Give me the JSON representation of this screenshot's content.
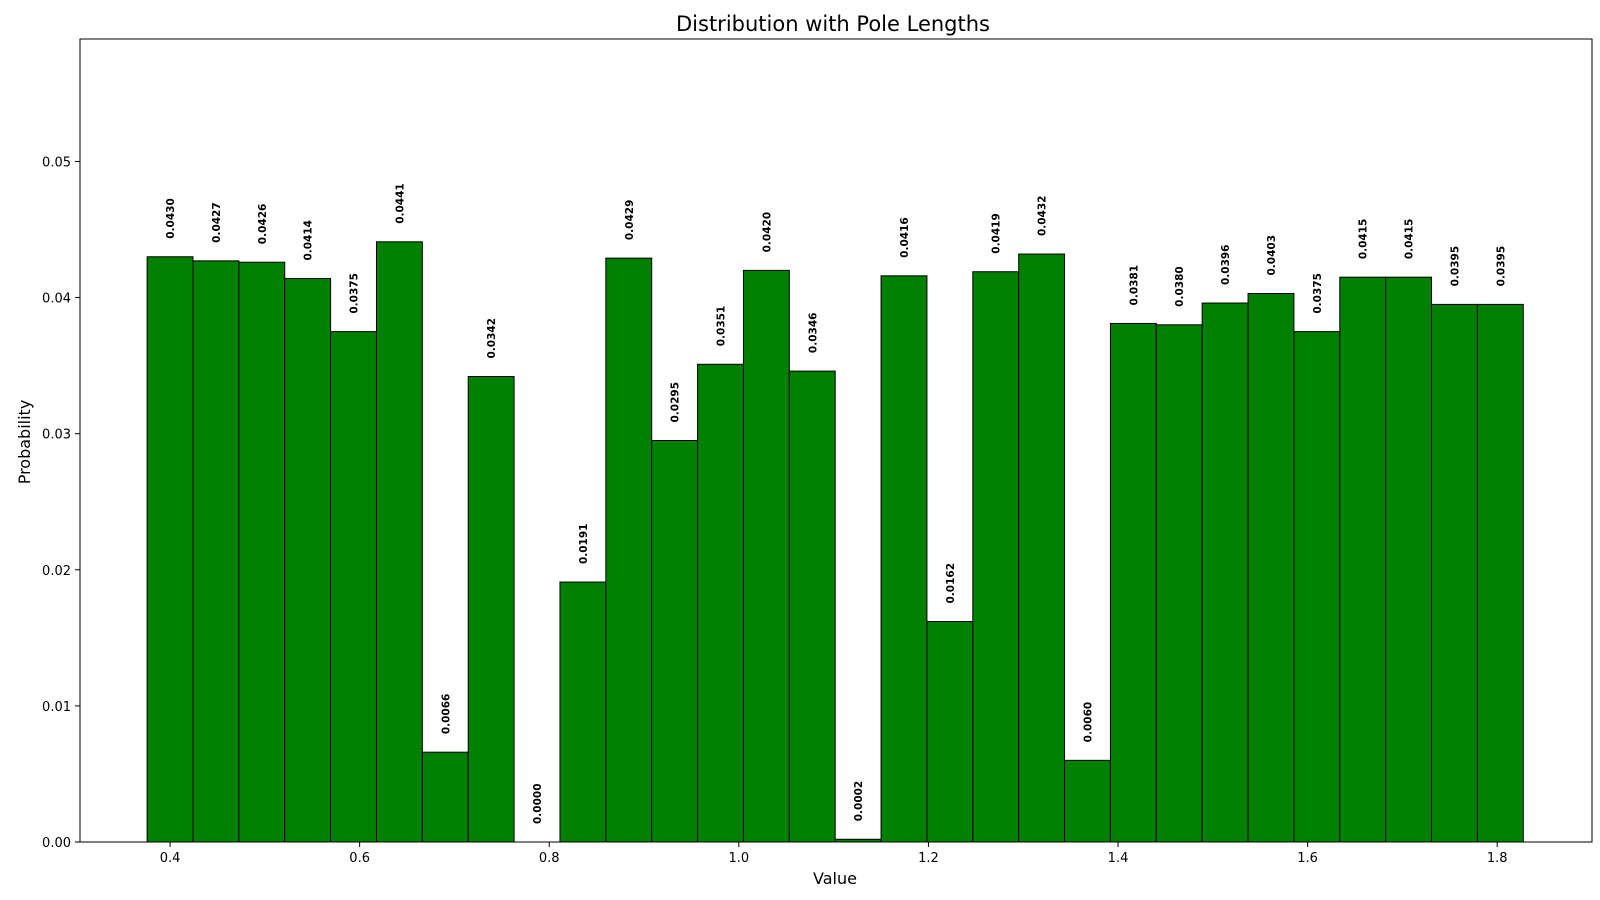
{
  "chart_data": {
    "type": "bar",
    "title": "Distribution with Pole Lengths",
    "xlabel": "Value",
    "ylabel": "Probability",
    "xlim": [
      0.305,
      1.9
    ],
    "ylim": [
      0,
      0.059
    ],
    "xticks": [
      "0.4",
      "0.6",
      "0.8",
      "1.0",
      "1.2",
      "1.4",
      "1.6",
      "1.8"
    ],
    "xtick_values": [
      0.4,
      0.6,
      0.8,
      1.0,
      1.2,
      1.4,
      1.6,
      1.8
    ],
    "yticks": [
      "0.00",
      "0.01",
      "0.02",
      "0.03",
      "0.04",
      "0.05"
    ],
    "ytick_values": [
      0,
      0.01,
      0.02,
      0.03,
      0.04,
      0.05
    ],
    "bin_start": 0.3758,
    "bin_width": 0.04839,
    "bar_color": "#008000",
    "edge_color": "#000000",
    "grid": false,
    "values": [
      0.043,
      0.0427,
      0.0426,
      0.0414,
      0.0375,
      0.0441,
      0.0066,
      0.0342,
      0.0,
      0.0191,
      0.0429,
      0.0295,
      0.0351,
      0.042,
      0.0346,
      0.0002,
      0.0416,
      0.0162,
      0.0419,
      0.0432,
      0.006,
      0.0381,
      0.038,
      0.0396,
      0.0403,
      0.0375,
      0.0415,
      0.0415,
      0.0395,
      0.0395
    ],
    "labels": [
      "0.0430",
      "0.0427",
      "0.0426",
      "0.0414",
      "0.0375",
      "0.0441",
      "0.0066",
      "0.0342",
      "0.0000",
      "0.0191",
      "0.0429",
      "0.0295",
      "0.0351",
      "0.0420",
      "0.0346",
      "0.0002",
      "0.0416",
      "0.0162",
      "0.0419",
      "0.0432",
      "0.0060",
      "0.0381",
      "0.0380",
      "0.0396",
      "0.0403",
      "0.0375",
      "0.0415",
      "0.0415",
      "0.0395",
      "0.0395"
    ]
  }
}
